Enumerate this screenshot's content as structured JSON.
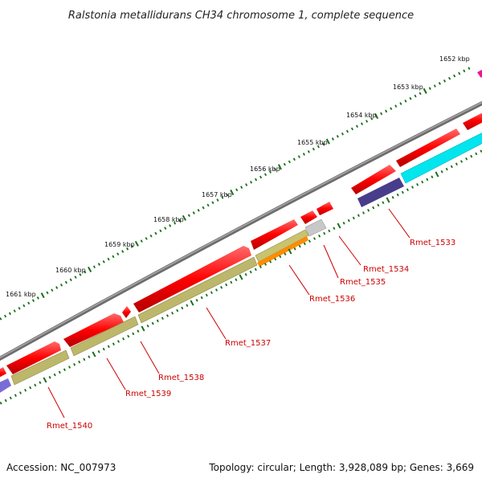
{
  "title": "Ralstonia metallidurans CH34 chromosome 1, complete sequence",
  "accession": "Accession: NC_007973",
  "summary": "Topology: circular; Length: 3,928,089 bp; Genes: 3,669",
  "ruler_labels": [
    "1652 kbp",
    "1653 kbp",
    "1654 kbp",
    "1655 kbp",
    "1656 kbp",
    "1657 kbp",
    "1658 kbp",
    "1659 kbp",
    "1660 kbp",
    "1661 kbp"
  ],
  "gene_labels": [
    "Rmet_1533",
    "Rmet_1534",
    "Rmet_1535",
    "Rmet_1536",
    "Rmet_1537",
    "Rmet_1538",
    "Rmet_1539",
    "Rmet_1540"
  ],
  "colors": {
    "cds": "#ff0000",
    "ring": "#7d7b7b",
    "olive": "#bdb76b",
    "cyan": "#00e5ee",
    "purple": "#483d8b",
    "orange": "#ff8c00",
    "silver": "#c0c0c0",
    "magenta": "#ee1493",
    "tick": "#1a6e1a",
    "label": "#cc0000"
  }
}
